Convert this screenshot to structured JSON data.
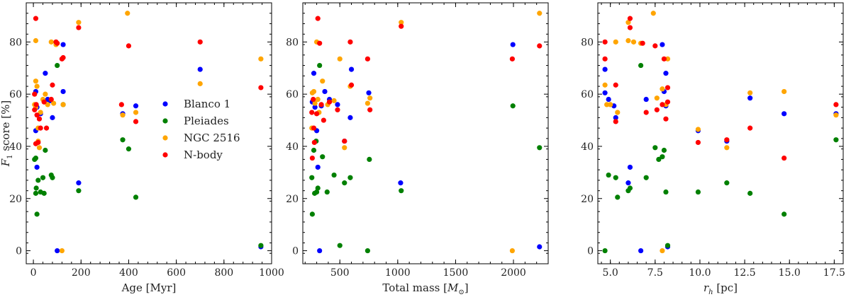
{
  "chart_data": [
    {
      "type": "scatter",
      "xlabel": "Age [Myr]",
      "ylabel": "F1 score [%]",
      "ylabel_main": "F",
      "ylabel_sub": "1",
      "ylabel_rest": " score [%]",
      "xlim": [
        -30,
        1000
      ],
      "ylim": [
        -5,
        95
      ],
      "xticks": [
        0,
        200,
        400,
        600,
        800,
        1000
      ],
      "xtick_labels": [
        "0",
        "200",
        "400",
        "600",
        "800",
        "1000"
      ],
      "yticks": [
        0,
        20,
        40,
        60,
        80
      ],
      "ytick_labels": [
        "0",
        "20",
        "40",
        "60",
        "80"
      ],
      "legend": true,
      "legend_position": "center-right",
      "series": [
        {
          "name": "Blanco 1",
          "color": "#0000ff",
          "points": [
            [
              10,
              61
            ],
            [
              15,
              55
            ],
            [
              30,
              52.5
            ],
            [
              50,
              68
            ],
            [
              60,
              58
            ],
            [
              70,
              57.5
            ],
            [
              80,
              51
            ],
            [
              100,
              0
            ],
            [
              125,
              79
            ],
            [
              125,
              61
            ],
            [
              190,
              26
            ],
            [
              375,
              52.5
            ],
            [
              430,
              55.5
            ],
            [
              700,
              69.5
            ],
            [
              955,
              1.5
            ],
            [
              10,
              46
            ],
            [
              15,
              32
            ]
          ]
        },
        {
          "name": "Pleiades",
          "color": "#008000",
          "points": [
            [
              5,
              35
            ],
            [
              10,
              35.5
            ],
            [
              10,
              22
            ],
            [
              12,
              24
            ],
            [
              15,
              14
            ],
            [
              20,
              27
            ],
            [
              30,
              22.5
            ],
            [
              40,
              28
            ],
            [
              45,
              22
            ],
            [
              50,
              38.5
            ],
            [
              75,
              29
            ],
            [
              80,
              28
            ],
            [
              100,
              71
            ],
            [
              125,
              56
            ],
            [
              190,
              23
            ],
            [
              375,
              42.5
            ],
            [
              400,
              39
            ],
            [
              430,
              20.5
            ],
            [
              955,
              2
            ]
          ]
        },
        {
          "name": "NGC 2516",
          "color": "#ffa500",
          "points": [
            [
              10,
              80.5
            ],
            [
              10,
              65
            ],
            [
              15,
              63
            ],
            [
              20,
              47
            ],
            [
              20,
              42
            ],
            [
              25,
              39.5
            ],
            [
              30,
              53
            ],
            [
              40,
              58
            ],
            [
              50,
              60
            ],
            [
              60,
              56
            ],
            [
              75,
              80
            ],
            [
              85,
              56.5
            ],
            [
              95,
              79
            ],
            [
              120,
              0
            ],
            [
              125,
              56
            ],
            [
              190,
              87.5
            ],
            [
              375,
              52
            ],
            [
              395,
              91
            ],
            [
              430,
              53
            ],
            [
              700,
              64
            ],
            [
              955,
              73.5
            ],
            [
              5,
              56
            ],
            [
              10,
              55
            ]
          ]
        },
        {
          "name": "N-body",
          "color": "#ff0000",
          "points": [
            [
              5,
              54
            ],
            [
              10,
              89
            ],
            [
              12,
              56
            ],
            [
              15,
              52
            ],
            [
              20,
              41.5
            ],
            [
              25,
              50.5
            ],
            [
              30,
              47
            ],
            [
              45,
              57
            ],
            [
              55,
              47
            ],
            [
              75,
              58
            ],
            [
              80,
              63.5
            ],
            [
              95,
              80
            ],
            [
              100,
              79.5
            ],
            [
              120,
              73.5
            ],
            [
              125,
              74
            ],
            [
              190,
              85.5
            ],
            [
              370,
              56
            ],
            [
              400,
              78.5
            ],
            [
              430,
              49.5
            ],
            [
              700,
              80
            ],
            [
              955,
              62.5
            ],
            [
              5,
              60
            ],
            [
              10,
              41
            ]
          ]
        }
      ]
    },
    {
      "type": "scatter",
      "xlabel": "Total mass [M⊙]",
      "xlabel_main": "Total mass [",
      "xlabel_sym": "M",
      "xlabel_sub": "⊙",
      "xlabel_end": "]",
      "ylabel": "",
      "xlim": [
        180,
        2300
      ],
      "ylim": [
        -5,
        95
      ],
      "xticks": [
        500,
        1000,
        1500,
        2000
      ],
      "xtick_labels": [
        "500",
        "1000",
        "1500",
        "2000"
      ],
      "yticks": [
        0,
        20,
        40,
        60,
        80
      ],
      "ytick_labels": [
        "0",
        "20",
        "40",
        "60",
        "80"
      ],
      "legend": false,
      "series": [
        {
          "name": "Blanco 1",
          "color": "#0000ff",
          "points": [
            [
              262,
              57
            ],
            [
              275,
              68
            ],
            [
              285,
              55
            ],
            [
              300,
              46
            ],
            [
              310,
              32
            ],
            [
              325,
              0
            ],
            [
              340,
              55.5
            ],
            [
              370,
              61
            ],
            [
              410,
              58
            ],
            [
              480,
              56
            ],
            [
              540,
              42
            ],
            [
              590,
              51
            ],
            [
              600,
              69.5
            ],
            [
              750,
              60.5
            ],
            [
              1025,
              26
            ],
            [
              1995,
              79
            ],
            [
              2225,
              1.5
            ]
          ]
        },
        {
          "name": "Pleiades",
          "color": "#008000",
          "points": [
            [
              258,
              28
            ],
            [
              262,
              14
            ],
            [
              275,
              38.5
            ],
            [
              282,
              22
            ],
            [
              295,
              42
            ],
            [
              300,
              22.5
            ],
            [
              310,
              24
            ],
            [
              325,
              71
            ],
            [
              350,
              36
            ],
            [
              390,
              22.5
            ],
            [
              450,
              29
            ],
            [
              500,
              2
            ],
            [
              540,
              26
            ],
            [
              590,
              28
            ],
            [
              740,
              0
            ],
            [
              755,
              35
            ],
            [
              1030,
              23
            ],
            [
              1995,
              55.5
            ],
            [
              2225,
              39.5
            ]
          ]
        },
        {
          "name": "NGC 2516",
          "color": "#ffa500",
          "points": [
            [
              258,
              47
            ],
            [
              262,
              60.5
            ],
            [
              275,
              61
            ],
            [
              285,
              56.5
            ],
            [
              300,
              80
            ],
            [
              310,
              58
            ],
            [
              320,
              53
            ],
            [
              350,
              65
            ],
            [
              395,
              56
            ],
            [
              450,
              57.5
            ],
            [
              500,
              73.5
            ],
            [
              540,
              39.5
            ],
            [
              590,
              63
            ],
            [
              740,
              56.5
            ],
            [
              760,
              58.5
            ],
            [
              1030,
              87.5
            ],
            [
              1990,
              0
            ],
            [
              2225,
              91
            ]
          ]
        },
        {
          "name": "N-body",
          "color": "#ff0000",
          "points": [
            [
              258,
              53
            ],
            [
              262,
              35.5
            ],
            [
              270,
              58
            ],
            [
              275,
              47
            ],
            [
              280,
              41.5
            ],
            [
              300,
              52.5
            ],
            [
              310,
              89
            ],
            [
              325,
              79.5
            ],
            [
              340,
              56
            ],
            [
              360,
              50
            ],
            [
              410,
              57
            ],
            [
              480,
              54
            ],
            [
              540,
              42
            ],
            [
              590,
              80
            ],
            [
              600,
              63.5
            ],
            [
              740,
              73.5
            ],
            [
              760,
              54
            ],
            [
              1030,
              86
            ],
            [
              1990,
              73.5
            ],
            [
              2225,
              78.5
            ]
          ]
        }
      ]
    },
    {
      "type": "scatter",
      "xlabel": "rh [pc]",
      "xlabel_sym": "r",
      "xlabel_sub": "h",
      "xlabel_rest": " [pc]",
      "ylabel": "",
      "xlim": [
        4.3,
        18.0
      ],
      "ylim": [
        -5,
        95
      ],
      "xticks": [
        5.0,
        7.5,
        10.0,
        12.5,
        15.0,
        17.5
      ],
      "xtick_labels": [
        "5.0",
        "7.5",
        "10.0",
        "12.5",
        "15.0",
        "17.5"
      ],
      "yticks": [
        0,
        20,
        40,
        60,
        80
      ],
      "ytick_labels": [
        "0",
        "20",
        "40",
        "60",
        "80"
      ],
      "legend": false,
      "series": [
        {
          "name": "Blanco 1",
          "color": "#0000ff",
          "points": [
            [
              4.7,
              69.5
            ],
            [
              4.7,
              60.5
            ],
            [
              4.9,
              58
            ],
            [
              5.2,
              55.5
            ],
            [
              5.3,
              51
            ],
            [
              6.1,
              32
            ],
            [
              6.0,
              26
            ],
            [
              6.7,
              0
            ],
            [
              7.0,
              58
            ],
            [
              7.9,
              79
            ],
            [
              8.0,
              61
            ],
            [
              8.1,
              68
            ],
            [
              8.1,
              55.5
            ],
            [
              8.2,
              1.5
            ],
            [
              9.9,
              46
            ],
            [
              11.5,
              42
            ],
            [
              12.8,
              58.5
            ],
            [
              14.7,
              52.5
            ],
            [
              17.6,
              52.5
            ]
          ]
        },
        {
          "name": "Pleiades",
          "color": "#008000",
          "points": [
            [
              4.7,
              0
            ],
            [
              4.9,
              29
            ],
            [
              5.3,
              28
            ],
            [
              5.4,
              20.5
            ],
            [
              6.0,
              23
            ],
            [
              6.1,
              24
            ],
            [
              6.7,
              71
            ],
            [
              7.0,
              28
            ],
            [
              7.5,
              39.5
            ],
            [
              7.7,
              35
            ],
            [
              7.9,
              36
            ],
            [
              8.0,
              38.5
            ],
            [
              8.1,
              22.5
            ],
            [
              8.2,
              2
            ],
            [
              9.9,
              22.5
            ],
            [
              11.5,
              26
            ],
            [
              12.8,
              22
            ],
            [
              14.7,
              14
            ],
            [
              17.6,
              42.5
            ]
          ]
        },
        {
          "name": "NGC 2516",
          "color": "#ffa500",
          "points": [
            [
              4.7,
              63.5
            ],
            [
              4.8,
              56
            ],
            [
              5.0,
              56
            ],
            [
              5.3,
              80
            ],
            [
              5.4,
              53
            ],
            [
              6.0,
              80.5
            ],
            [
              6.0,
              87.5
            ],
            [
              6.3,
              80
            ],
            [
              6.7,
              79.5
            ],
            [
              7.4,
              91
            ],
            [
              7.6,
              58.5
            ],
            [
              7.9,
              62
            ],
            [
              7.9,
              0
            ],
            [
              8.1,
              56
            ],
            [
              8.2,
              73.5
            ],
            [
              9.9,
              46.5
            ],
            [
              11.5,
              39.5
            ],
            [
              12.8,
              60.5
            ],
            [
              14.7,
              61
            ],
            [
              17.6,
              52
            ]
          ]
        },
        {
          "name": "N-body",
          "color": "#ff0000",
          "points": [
            [
              4.7,
              80
            ],
            [
              4.7,
              73.5
            ],
            [
              5.3,
              63.5
            ],
            [
              5.3,
              49.5
            ],
            [
              6.1,
              89
            ],
            [
              6.1,
              85.5
            ],
            [
              6.8,
              79.5
            ],
            [
              7.0,
              53
            ],
            [
              7.5,
              78.5
            ],
            [
              7.6,
              54
            ],
            [
              7.9,
              56
            ],
            [
              8.0,
              73.5
            ],
            [
              8.1,
              50.5
            ],
            [
              8.2,
              62.5
            ],
            [
              8.2,
              57
            ],
            [
              9.9,
              41.5
            ],
            [
              11.5,
              42.5
            ],
            [
              12.8,
              47
            ],
            [
              14.7,
              35.5
            ],
            [
              17.6,
              56
            ]
          ]
        }
      ]
    }
  ]
}
